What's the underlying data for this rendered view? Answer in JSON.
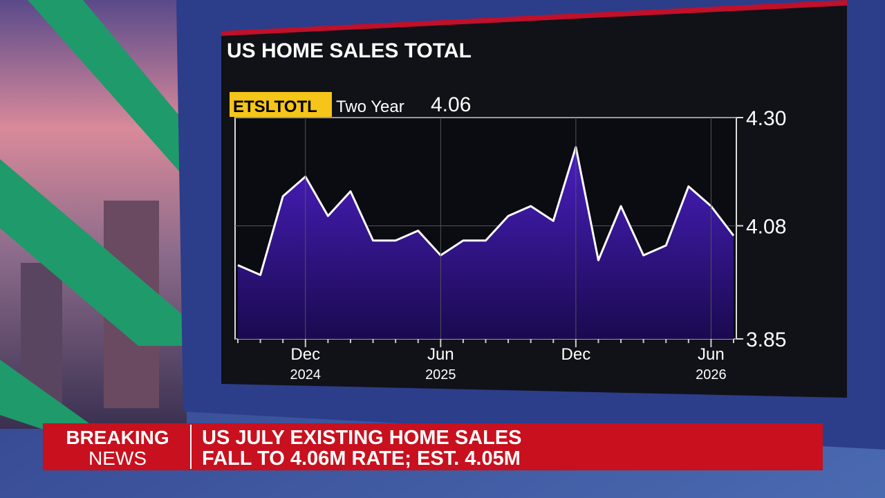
{
  "chart_data": {
    "type": "area",
    "title": "US HOME SALES TOTAL",
    "ticker": "ETSLTOTL",
    "period": "Two Year",
    "current_value": 4.06,
    "categories": [
      null,
      null,
      null,
      "Dec 2024",
      null,
      null,
      null,
      null,
      null,
      "Jun 2025",
      null,
      null,
      null,
      null,
      null,
      "Dec",
      null,
      null,
      null,
      null,
      null,
      "Jun 2026",
      null
    ],
    "values": [
      4.0,
      3.98,
      4.14,
      4.18,
      4.1,
      4.15,
      4.05,
      4.05,
      4.07,
      4.02,
      4.05,
      4.05,
      4.1,
      4.12,
      4.09,
      4.24,
      4.01,
      4.12,
      4.02,
      4.04,
      4.16,
      4.12,
      4.06
    ],
    "color": "#ffffff",
    "ylim": [
      3.85,
      4.3
    ],
    "yticks": [
      3.85,
      4.08,
      {
        "value": 4.3,
        "label": "4.30"
      }
    ],
    "grid": true
  },
  "banner": {
    "tag_top": "BREAKING",
    "tag_bottom": "NEWS",
    "line1": "US JULY EXISTING HOME SALES",
    "line2": "FALL TO 4.06M RATE; EST. 4.05M"
  }
}
